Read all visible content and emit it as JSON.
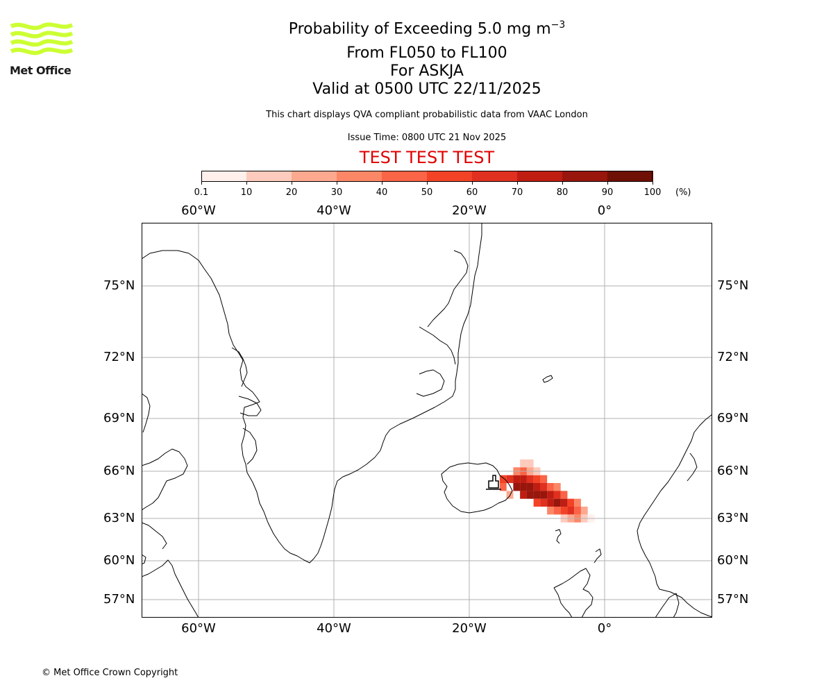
{
  "header": {
    "title_main": "Probability of Exceeding 5.0 mg m",
    "title_sup": "−3",
    "flight_levels": "From FL050 to FL100",
    "volcano": "For ASKJA",
    "valid_time": "Valid at 0500 UTC 22/11/2025",
    "disclaimer": "This chart displays QVA compliant probabilistic data from VAAC London",
    "issue_time": "Issue Time: 0800 UTC 21 Nov 2025",
    "test_banner": "TEST TEST TEST"
  },
  "logo": {
    "text": "Met Office",
    "color": "#ccff33"
  },
  "colorbar": {
    "ticks": [
      "0.1",
      "10",
      "20",
      "30",
      "40",
      "50",
      "60",
      "70",
      "80",
      "90",
      "100"
    ],
    "unit": "(%)",
    "colors": [
      "#fff0ec",
      "#fdcbbd",
      "#fca98f",
      "#fc8767",
      "#fa6447",
      "#f34327",
      "#e03020",
      "#bf1d12",
      "#98160c",
      "#6f1006"
    ]
  },
  "map": {
    "lon_labels": [
      "60°W",
      "40°W",
      "20°W",
      "0°"
    ],
    "lat_labels": [
      "75°N",
      "72°N",
      "69°N",
      "66°N",
      "63°N",
      "60°N",
      "57°N"
    ],
    "volcano_name": "ASKJA",
    "plume_cells": [
      [
        14,
        65.5,
        60
      ],
      [
        13,
        65.5,
        70
      ],
      [
        12,
        65.5,
        70
      ],
      [
        11,
        65.5,
        60
      ],
      [
        10,
        65.5,
        50
      ],
      [
        9,
        65.5,
        40
      ],
      [
        13,
        65,
        80
      ],
      [
        12,
        65,
        80
      ],
      [
        11,
        65,
        80
      ],
      [
        10,
        65,
        70
      ],
      [
        9,
        65,
        60
      ],
      [
        8,
        65,
        40
      ],
      [
        7,
        65,
        30
      ],
      [
        12,
        64.5,
        70
      ],
      [
        11,
        64.5,
        80
      ],
      [
        10,
        64.5,
        80
      ],
      [
        9,
        64.5,
        80
      ],
      [
        8,
        64.5,
        70
      ],
      [
        7,
        64.5,
        60
      ],
      [
        6,
        64.5,
        40
      ],
      [
        10,
        64,
        50
      ],
      [
        9,
        64,
        60
      ],
      [
        8,
        64,
        70
      ],
      [
        7,
        64,
        80
      ],
      [
        6,
        64,
        70
      ],
      [
        5,
        64,
        50
      ],
      [
        4,
        64,
        30
      ],
      [
        8,
        63.5,
        30
      ],
      [
        7,
        63.5,
        40
      ],
      [
        6,
        63.5,
        50
      ],
      [
        5,
        63.5,
        60
      ],
      [
        4,
        63.5,
        40
      ],
      [
        3,
        63.5,
        20
      ],
      [
        6,
        63,
        10
      ],
      [
        5,
        63,
        20
      ],
      [
        4,
        63,
        30
      ],
      [
        3,
        63,
        10
      ],
      [
        13,
        66,
        30
      ],
      [
        12,
        66,
        40
      ],
      [
        11,
        66,
        20
      ],
      [
        10,
        66,
        10
      ],
      [
        12,
        66.5,
        10
      ],
      [
        11,
        66.5,
        10
      ],
      [
        14,
        64.5,
        20
      ],
      [
        15,
        65,
        40
      ],
      [
        15,
        65.5,
        50
      ],
      [
        2,
        63,
        5
      ]
    ]
  }
}
